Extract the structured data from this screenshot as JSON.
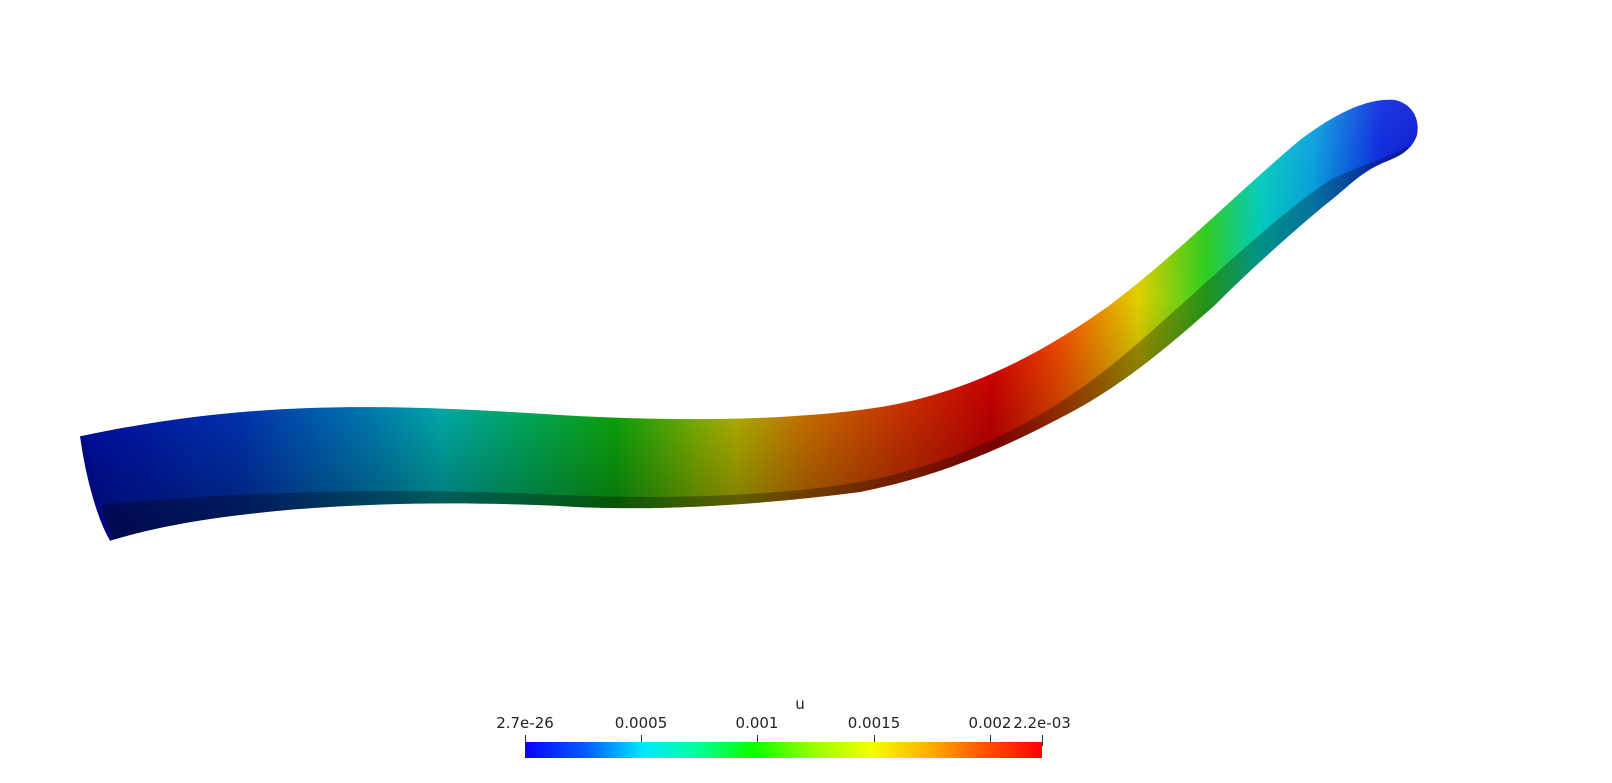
{
  "colorbar": {
    "title": "u",
    "labels": {
      "min": "2.7e-26",
      "t1": "0.0005",
      "t2": "0.001",
      "t3": "0.0015",
      "t4": "0.002",
      "max": "2.2e-03"
    }
  },
  "colors": {
    "blue": "#0018d8",
    "cyan": "#00d8d8",
    "green": "#10d010",
    "yellow": "#e0e000",
    "orange": "#ff7800",
    "red": "#ee0000"
  }
}
